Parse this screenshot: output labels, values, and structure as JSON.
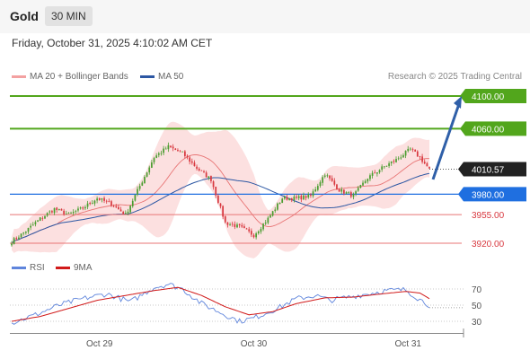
{
  "header": {
    "symbol": "Gold",
    "interval": "30 MIN"
  },
  "datetime": "Friday, October 31, 2025 4:10:02 AM CET",
  "legend": {
    "ma20": "MA 20 + Bollinger Bands",
    "ma50": "MA 50",
    "rsi": "RSI",
    "ma9": "9MA",
    "credit": "Research © 2025 Trading Central"
  },
  "colors": {
    "up": "#4a9d2f",
    "down": "#d8383f",
    "ma20": "#e87575",
    "ma50": "#2c57a3",
    "boll": "#fbdada",
    "target": "#52a61c",
    "current": "#222222",
    "support": "#1f6fe0",
    "resist": "#e87575",
    "rsi": "#5f85dc",
    "rsima": "#d11a1a"
  },
  "chart_data": {
    "type": "candlestick",
    "ylim": [
      3908,
      4112
    ],
    "levels": [
      {
        "value": 4100,
        "label": "4100.00",
        "style": "target"
      },
      {
        "value": 4060,
        "label": "4060.00",
        "style": "target"
      },
      {
        "value": 4010.57,
        "label": "4010.57",
        "style": "current"
      },
      {
        "value": 3980,
        "label": "3980.00",
        "style": "support"
      },
      {
        "value": 3955,
        "label": "3955.00",
        "style": "red"
      },
      {
        "value": 3920,
        "label": "3920.00",
        "style": "red"
      }
    ],
    "close_anchors": [
      [
        0,
        3922
      ],
      [
        6,
        3935
      ],
      [
        12,
        3950
      ],
      [
        18,
        3962
      ],
      [
        24,
        3955
      ],
      [
        30,
        3963
      ],
      [
        36,
        3975
      ],
      [
        42,
        3968
      ],
      [
        48,
        3955
      ],
      [
        54,
        3990
      ],
      [
        60,
        4025
      ],
      [
        66,
        4038
      ],
      [
        72,
        4030
      ],
      [
        78,
        4012
      ],
      [
        84,
        3998
      ],
      [
        90,
        3945
      ],
      [
        96,
        3940
      ],
      [
        102,
        3930
      ],
      [
        108,
        3950
      ],
      [
        114,
        3975
      ],
      [
        120,
        3975
      ],
      [
        126,
        3978
      ],
      [
        132,
        4005
      ],
      [
        138,
        3985
      ],
      [
        144,
        3978
      ],
      [
        150,
        4000
      ],
      [
        156,
        4012
      ],
      [
        162,
        4022
      ],
      [
        168,
        4035
      ],
      [
        172,
        4025
      ],
      [
        176,
        4010
      ]
    ],
    "rsi": {
      "ylim": [
        20,
        80
      ],
      "ticks": [
        70,
        50,
        30
      ],
      "rsi_anchors": [
        [
          0,
          28
        ],
        [
          10,
          38
        ],
        [
          20,
          50
        ],
        [
          30,
          58
        ],
        [
          40,
          64
        ],
        [
          50,
          54
        ],
        [
          60,
          72
        ],
        [
          66,
          76
        ],
        [
          72,
          70
        ],
        [
          80,
          52
        ],
        [
          90,
          38
        ],
        [
          96,
          30
        ],
        [
          102,
          34
        ],
        [
          112,
          46
        ],
        [
          120,
          58
        ],
        [
          128,
          62
        ],
        [
          134,
          56
        ],
        [
          142,
          60
        ],
        [
          150,
          64
        ],
        [
          158,
          68
        ],
        [
          166,
          69
        ],
        [
          172,
          57
        ],
        [
          176,
          50
        ]
      ],
      "ma_anchors": [
        [
          0,
          30
        ],
        [
          12,
          36
        ],
        [
          24,
          46
        ],
        [
          36,
          56
        ],
        [
          48,
          62
        ],
        [
          60,
          68
        ],
        [
          70,
          72
        ],
        [
          80,
          62
        ],
        [
          90,
          48
        ],
        [
          100,
          38
        ],
        [
          110,
          42
        ],
        [
          120,
          52
        ],
        [
          132,
          59
        ],
        [
          144,
          60
        ],
        [
          156,
          64
        ],
        [
          166,
          67
        ],
        [
          172,
          65
        ],
        [
          176,
          58
        ]
      ]
    },
    "x_labels": [
      "Oct 29",
      "Oct 30",
      "Oct 31"
    ],
    "x_label_index": [
      37,
      102,
      167
    ]
  }
}
